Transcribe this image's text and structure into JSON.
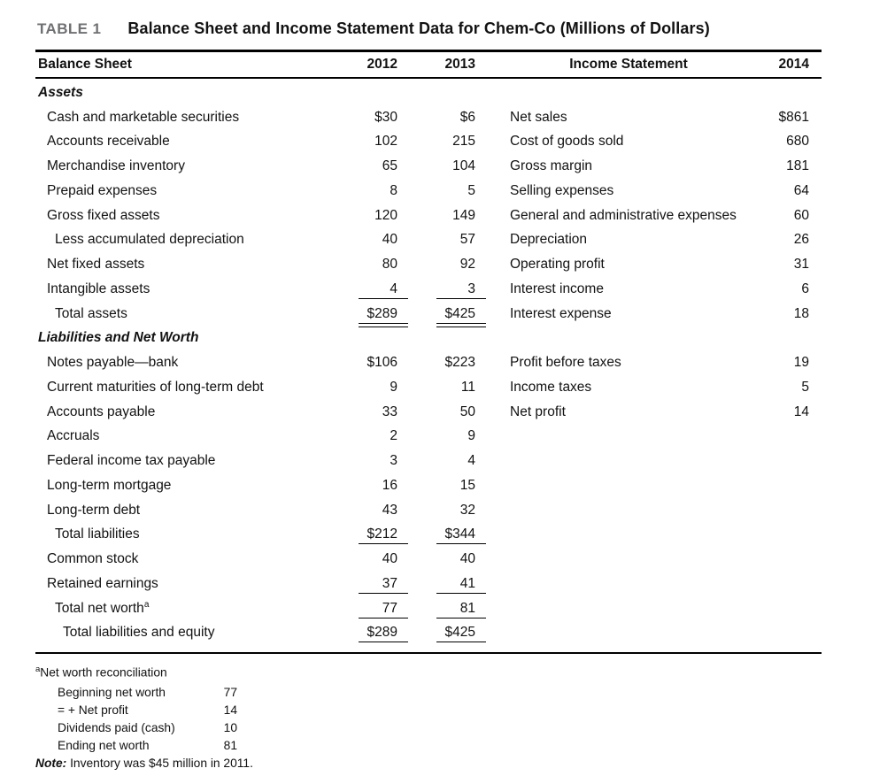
{
  "header": {
    "table_label": "TABLE 1",
    "title": "Balance Sheet and Income Statement Data for Chem-Co (Millions of Dollars)"
  },
  "columns": {
    "balance_sheet": "Balance Sheet",
    "y2012": "2012",
    "y2013": "2013",
    "income_statement": "Income Statement",
    "y2014": "2014"
  },
  "rows": [
    {
      "label": "Assets"
    },
    {
      "label": "Cash and marketable securities",
      "v1": "$30",
      "v2": "$6",
      "income_label": "Net sales",
      "income_value": "$861"
    },
    {
      "label": "Accounts receivable",
      "v1": "102",
      "v2": "215",
      "income_label": "Cost of goods sold",
      "income_value": "680"
    },
    {
      "label": "Merchandise inventory",
      "v1": "65",
      "v2": "104",
      "income_label": "Gross margin",
      "income_value": "181"
    },
    {
      "label": "Prepaid expenses",
      "v1": "8",
      "v2": "5",
      "income_label": "Selling expenses",
      "income_value": "64"
    },
    {
      "label": "Gross fixed assets",
      "v1": "120",
      "v2": "149",
      "income_label": "General and administrative expenses",
      "income_value": "60"
    },
    {
      "label": "Less accumulated depreciation",
      "v1": "40",
      "v2": "57",
      "income_label": "Depreciation",
      "income_value": "26"
    },
    {
      "label": "Net fixed assets",
      "v1": "80",
      "v2": "92",
      "income_label": "Operating profit",
      "income_value": "31"
    },
    {
      "label": "Intangible assets",
      "v1": "4",
      "v2": "3",
      "income_label": "Interest income",
      "income_value": "6"
    },
    {
      "label": "Total assets",
      "v1": "$289",
      "v2": "$425",
      "income_label": "Interest expense",
      "income_value": "18"
    },
    {
      "label": "Liabilities and Net Worth"
    },
    {
      "label": "Notes payable—bank",
      "v1": "$106",
      "v2": "$223",
      "income_label": "Profit before taxes",
      "income_value": "19"
    },
    {
      "label": "Current maturities of long-term debt",
      "v1": "9",
      "v2": "11",
      "income_label": "Income taxes",
      "income_value": "5"
    },
    {
      "label": "Accounts payable",
      "v1": "33",
      "v2": "50",
      "income_label": "Net profit",
      "income_value": "14"
    },
    {
      "label": "Accruals",
      "v1": "2",
      "v2": "9"
    },
    {
      "label": "Federal income tax payable",
      "v1": "3",
      "v2": "4"
    },
    {
      "label": "Long-term mortgage",
      "v1": "16",
      "v2": "15"
    },
    {
      "label": "Long-term debt",
      "v1": "43",
      "v2": "32"
    },
    {
      "label": "Total liabilities",
      "v1": "$212",
      "v2": "$344"
    },
    {
      "label": "Common stock",
      "v1": "40",
      "v2": "40"
    },
    {
      "label": "Retained earnings",
      "v1": "37",
      "v2": "41"
    },
    {
      "label": "Total net worth",
      "label_sup": "a",
      "v1": "77",
      "v2": "81"
    },
    {
      "label": "Total liabilities and equity",
      "v1": "$289",
      "v2": "$425"
    }
  ],
  "footnote": {
    "marker": "a",
    "title": "Net worth reconciliation",
    "items": [
      {
        "label": "Beginning net worth",
        "value": "77"
      },
      {
        "label": "= + Net profit",
        "value": "14"
      },
      {
        "label": "Dividends paid (cash)",
        "value": "10"
      },
      {
        "label": "Ending net worth",
        "value": "81"
      }
    ],
    "note_label": "Note:",
    "note_text": " Inventory was $45 million in 2011."
  },
  "colors": {
    "text": "#121212",
    "table_label_gray": "#6f7072",
    "rule": "#000000"
  }
}
